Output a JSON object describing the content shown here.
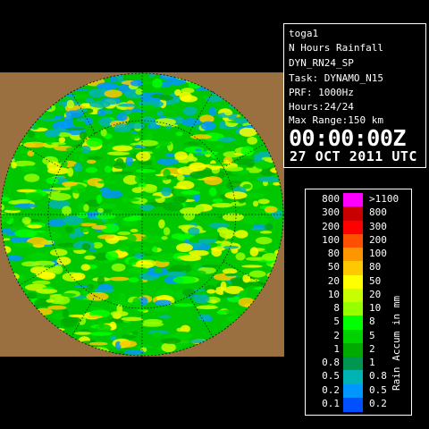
{
  "info": {
    "site": "toga1",
    "product": "N Hours Rainfall",
    "product_id": "DYN_RN24_SP",
    "task": "Task: DYNAMO_N15",
    "prf": "PRF: 1000Hz",
    "hours": "Hours:24/24",
    "max_range": "Max Range:150 km",
    "time": "00:00:00Z",
    "date": "27 OCT 2011 UTC"
  },
  "legend": {
    "title": "Rain Accum in mm",
    "left_labels": [
      "800",
      "300",
      "200",
      "100",
      "80",
      "50",
      "20",
      "10",
      "8",
      "5",
      "2",
      "1",
      "0.8",
      "0.5",
      "0.2",
      "0.1"
    ],
    "right_labels": [
      ">1100",
      "800",
      "300",
      "200",
      "100",
      "80",
      "50",
      "20",
      "10",
      "8",
      "5",
      "2",
      "1",
      "0.8",
      "0.5",
      "0.2"
    ],
    "colors": [
      "#ff00ff",
      "#c80000",
      "#ff0000",
      "#ff5000",
      "#ff9600",
      "#ffc800",
      "#ffff00",
      "#c8ff00",
      "#96ff00",
      "#00ff00",
      "#00d200",
      "#00aa00",
      "#009650",
      "#00b4b4",
      "#0096ff",
      "#0050ff"
    ]
  },
  "map": {
    "land_color": "#9a7040",
    "ocean_colors": [
      "#00aa00",
      "#00d200",
      "#00ff00",
      "#96ff00",
      "#c8ff00",
      "#ffff00",
      "#ffc800",
      "#0096ff",
      "#00b4b4",
      "#ff9600",
      "#ff5000"
    ]
  }
}
